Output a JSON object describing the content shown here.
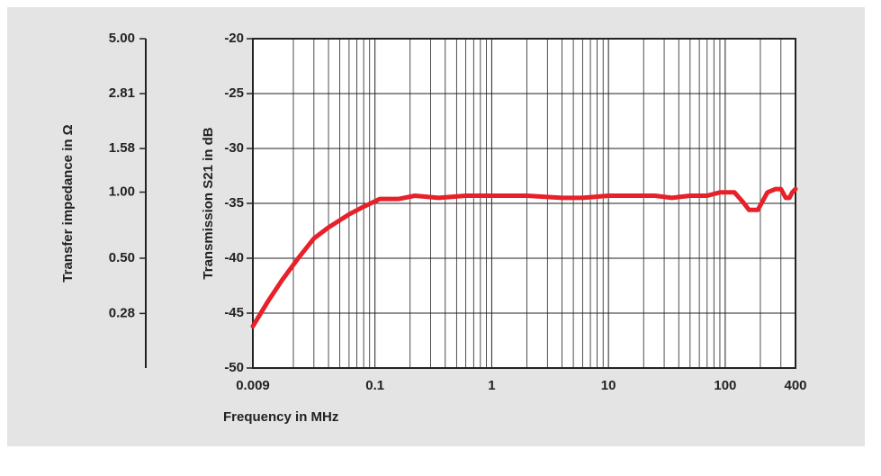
{
  "chart_data": {
    "type": "line",
    "x_label": "Frequency in MHz",
    "y_label": "Transmission S21 in dB",
    "y2_label": "Transfer impedance in Ω",
    "x_scale": "log",
    "y2_scale": "log",
    "grid": true,
    "xlim": [
      0.009,
      400
    ],
    "xticks": [
      0.009,
      0.1,
      1,
      10,
      100,
      400
    ],
    "xminor": [
      0.02,
      0.03,
      0.04,
      0.05,
      0.06,
      0.07,
      0.08,
      0.09,
      0.2,
      0.3,
      0.4,
      0.5,
      0.6,
      0.7,
      0.8,
      0.9,
      2,
      3,
      4,
      5,
      6,
      7,
      8,
      9,
      20,
      30,
      40,
      50,
      60,
      70,
      80,
      90,
      200,
      300
    ],
    "ylim": [
      -50,
      -20
    ],
    "yticks": [
      -50,
      -45,
      -40,
      -35,
      -30,
      -25,
      -20
    ],
    "y2lim": [
      0.158,
      5
    ],
    "y2ticks": [
      {
        "value": 5,
        "label": "5.00"
      },
      2.81,
      1.58,
      {
        "value": 1,
        "label": "1.00"
      },
      {
        "value": 0.5,
        "label": "0.50"
      },
      0.28
    ],
    "series": [
      {
        "color": "#e8202a",
        "x": [
          0.009,
          0.012,
          0.016,
          0.022,
          0.03,
          0.04,
          0.06,
          0.08,
          0.11,
          0.16,
          0.22,
          0.35,
          0.6,
          2,
          4,
          6,
          10,
          25,
          35,
          50,
          70,
          90,
          120,
          140,
          160,
          190,
          230,
          270,
          300,
          330,
          355,
          375,
          400
        ],
        "values": [
          -46.2,
          -44,
          -42,
          -40,
          -38.2,
          -37.2,
          -36,
          -35.3,
          -34.6,
          -34.6,
          -34.3,
          -34.5,
          -34.3,
          -34.3,
          -34.5,
          -34.5,
          -34.3,
          -34.3,
          -34.5,
          -34.3,
          -34.3,
          -34,
          -34,
          -34.8,
          -35.6,
          -35.6,
          -34,
          -33.7,
          -33.7,
          -34.5,
          -34.5,
          -34,
          -33.7
        ]
      }
    ]
  }
}
